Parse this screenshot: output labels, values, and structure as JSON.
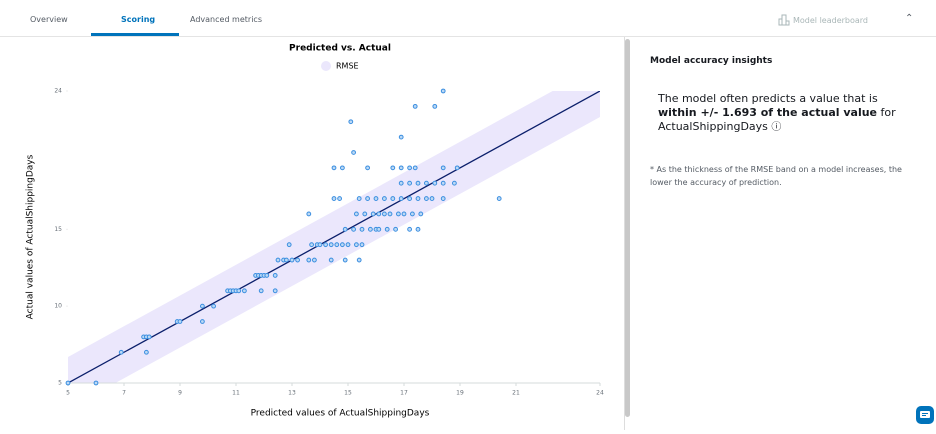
{
  "tabs": [
    "Overview",
    "Scoring",
    "Advanced metrics"
  ],
  "active_tab": 1,
  "leaderboard": "Model leaderboard",
  "chart_data": {
    "type": "scatter",
    "title": "Predicted vs. Actual",
    "band_name": "RMSE",
    "rmse": 1.693,
    "band_color": "#ebe7fc",
    "line_color": "#0b1f6b",
    "color": "#3a8ee0",
    "xlabel": "Predicted values of ActualShippingDays",
    "ylabel": "Actual values of ActualShippingDays",
    "xlim": [
      5,
      24
    ],
    "ylim": [
      5,
      24
    ],
    "xticks": [
      5,
      7,
      9,
      11,
      13,
      15,
      17,
      19,
      21,
      24
    ],
    "yticks": [
      5,
      10,
      15,
      24
    ],
    "x": [
      5.0,
      6.0,
      6.9,
      7.8,
      7.7,
      7.8,
      7.9,
      8.9,
      9.0,
      9.8,
      9.8,
      10.2,
      10.7,
      10.8,
      10.9,
      11.0,
      11.1,
      11.3,
      11.9,
      12.4,
      11.7,
      11.8,
      11.9,
      12.0,
      12.1,
      12.4,
      12.5,
      12.7,
      12.8,
      13.0,
      13.2,
      13.6,
      13.8,
      14.4,
      14.9,
      15.4,
      12.9,
      13.7,
      13.9,
      14.0,
      14.2,
      14.4,
      14.6,
      14.8,
      15.0,
      15.3,
      15.5,
      14.9,
      15.2,
      15.5,
      15.8,
      16.0,
      16.1,
      16.4,
      16.7,
      17.2,
      17.5,
      13.6,
      15.3,
      15.6,
      15.9,
      16.1,
      16.3,
      16.5,
      16.8,
      17.0,
      17.3,
      17.6,
      14.5,
      14.7,
      15.4,
      15.7,
      16.0,
      16.3,
      16.6,
      16.9,
      17.2,
      17.5,
      17.8,
      18.0,
      18.4,
      20.4,
      16.9,
      17.2,
      17.5,
      17.8,
      18.1,
      18.4,
      18.8,
      14.5,
      14.8,
      15.7,
      16.6,
      16.9,
      17.2,
      17.4,
      18.4,
      18.9,
      15.2,
      16.9,
      15.1,
      17.4,
      18.1,
      18.4
    ],
    "values": [
      5,
      5,
      7,
      7,
      8,
      8,
      8,
      9,
      9,
      9,
      10,
      10,
      11,
      11,
      11,
      11,
      11,
      11,
      11,
      11,
      12,
      12,
      12,
      12,
      12,
      12,
      13,
      13,
      13,
      13,
      13,
      13,
      13,
      13,
      13,
      13,
      14,
      14,
      14,
      14,
      14,
      14,
      14,
      14,
      14,
      14,
      14,
      15,
      15,
      15,
      15,
      15,
      15,
      15,
      15,
      15,
      15,
      16,
      16,
      16,
      16,
      16,
      16,
      16,
      16,
      16,
      16,
      16,
      17,
      17,
      17,
      17,
      17,
      17,
      17,
      17,
      17,
      17,
      17,
      17,
      17,
      17,
      18,
      18,
      18,
      18,
      18,
      18,
      18,
      19,
      19,
      19,
      19,
      19,
      19,
      19,
      19,
      19,
      20,
      21,
      22,
      23,
      23,
      24
    ]
  },
  "insights": {
    "title": "Model accuracy insights",
    "prefix": "The model often predicts a value that is",
    "bold_prefix": "within +/-",
    "bold_suffix": "of the actual value",
    "suffix": "for ActualShippingDays",
    "note": "* As the thickness of the RMSE band on a model increases, the lower the accuracy of prediction."
  }
}
